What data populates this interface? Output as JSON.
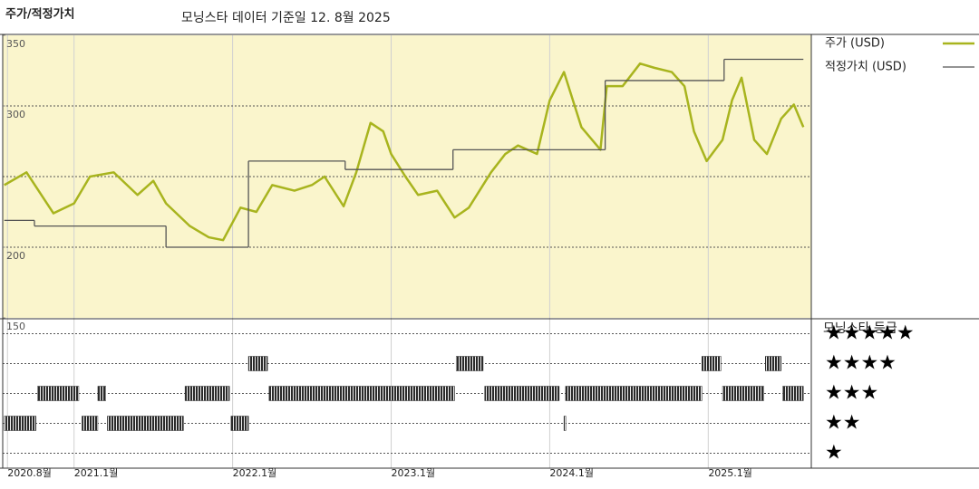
{
  "chart_data": [
    {
      "type": "line",
      "title": "주가/적정가치",
      "subtitle": "모닝스타 데이터 기준일 12. 8월 2025",
      "background": "#faf5cc",
      "xlim": [
        2020.55,
        2025.65
      ],
      "xticks": [
        {
          "value": 2020.58,
          "label": "2020.8월"
        },
        {
          "value": 2021,
          "label": "2021.1월"
        },
        {
          "value": 2022,
          "label": "2022.1월"
        },
        {
          "value": 2023,
          "label": "2023.1월"
        },
        {
          "value": 2024,
          "label": "2024.1월"
        },
        {
          "value": 2025,
          "label": "2025.1월"
        }
      ],
      "ylim": [
        150,
        350
      ],
      "yticks": [
        150,
        200,
        300,
        350
      ],
      "ygrid": [
        200,
        250,
        300
      ],
      "series": [
        {
          "name": "주가 (USD)",
          "color": "#a8b41e",
          "x": [
            2020.56,
            2020.7,
            2020.87,
            2021.0,
            2021.1,
            2021.25,
            2021.4,
            2021.5,
            2021.58,
            2021.73,
            2021.85,
            2021.94,
            2022.05,
            2022.15,
            2022.25,
            2022.39,
            2022.5,
            2022.58,
            2022.7,
            2022.78,
            2022.87,
            2022.95,
            2023.0,
            2023.09,
            2023.17,
            2023.29,
            2023.4,
            2023.49,
            2023.63,
            2023.72,
            2023.8,
            2023.92,
            2024.0,
            2024.09,
            2024.2,
            2024.32,
            2024.36,
            2024.46,
            2024.57,
            2024.66,
            2024.77,
            2024.85,
            2024.91,
            2024.99,
            2025.09,
            2025.15,
            2025.21,
            2025.29,
            2025.37,
            2025.46,
            2025.54,
            2025.6
          ],
          "values": [
            244,
            253,
            224,
            231,
            250,
            253,
            237,
            247,
            231,
            215,
            207,
            205,
            228,
            225,
            244,
            240,
            244,
            250,
            229,
            253,
            288,
            282,
            266,
            250,
            237,
            240,
            221,
            228,
            253,
            266,
            272,
            266,
            304,
            324,
            285,
            269,
            314,
            314,
            330,
            327,
            324,
            314,
            282,
            261,
            276,
            304,
            320,
            276,
            266,
            291,
            301,
            285
          ]
        },
        {
          "name": "적정가치 (USD)",
          "color": "#555555",
          "step": "post",
          "x": [
            2020.56,
            2020.75,
            2021.58,
            2022.1,
            2022.71,
            2023.39,
            2024.35,
            2025.1
          ],
          "values": [
            219,
            215,
            200,
            261,
            255,
            269,
            318,
            333
          ]
        }
      ]
    },
    {
      "type": "rating",
      "title": "모닝스타 등급",
      "color": "#2a2a2a",
      "ylim": [
        0.5,
        5.5
      ],
      "yticks": [
        {
          "value": 5,
          "label": "★★★★★"
        },
        {
          "value": 4,
          "label": "★★★★"
        },
        {
          "value": 3,
          "label": "★★★"
        },
        {
          "value": 2,
          "label": "★★"
        },
        {
          "value": 1,
          "label": "★"
        }
      ],
      "start": [
        2020.56,
        2020.77,
        2021.05,
        2021.15,
        2021.21,
        2021.7,
        2021.99,
        2022.1,
        2022.23,
        2023.41,
        2023.59,
        2024.09,
        2024.1,
        2024.96,
        2025.09,
        2025.36,
        2025.47
      ],
      "end": [
        2020.76,
        2021.03,
        2021.15,
        2021.2,
        2021.69,
        2021.98,
        2022.1,
        2022.22,
        2023.4,
        2023.58,
        2024.06,
        2024.1,
        2024.96,
        2025.08,
        2025.35,
        2025.46,
        2025.6
      ],
      "rating": [
        2,
        3,
        2,
        3,
        2,
        3,
        2,
        4,
        3,
        4,
        3,
        2,
        3,
        4,
        3,
        4,
        3
      ]
    }
  ]
}
